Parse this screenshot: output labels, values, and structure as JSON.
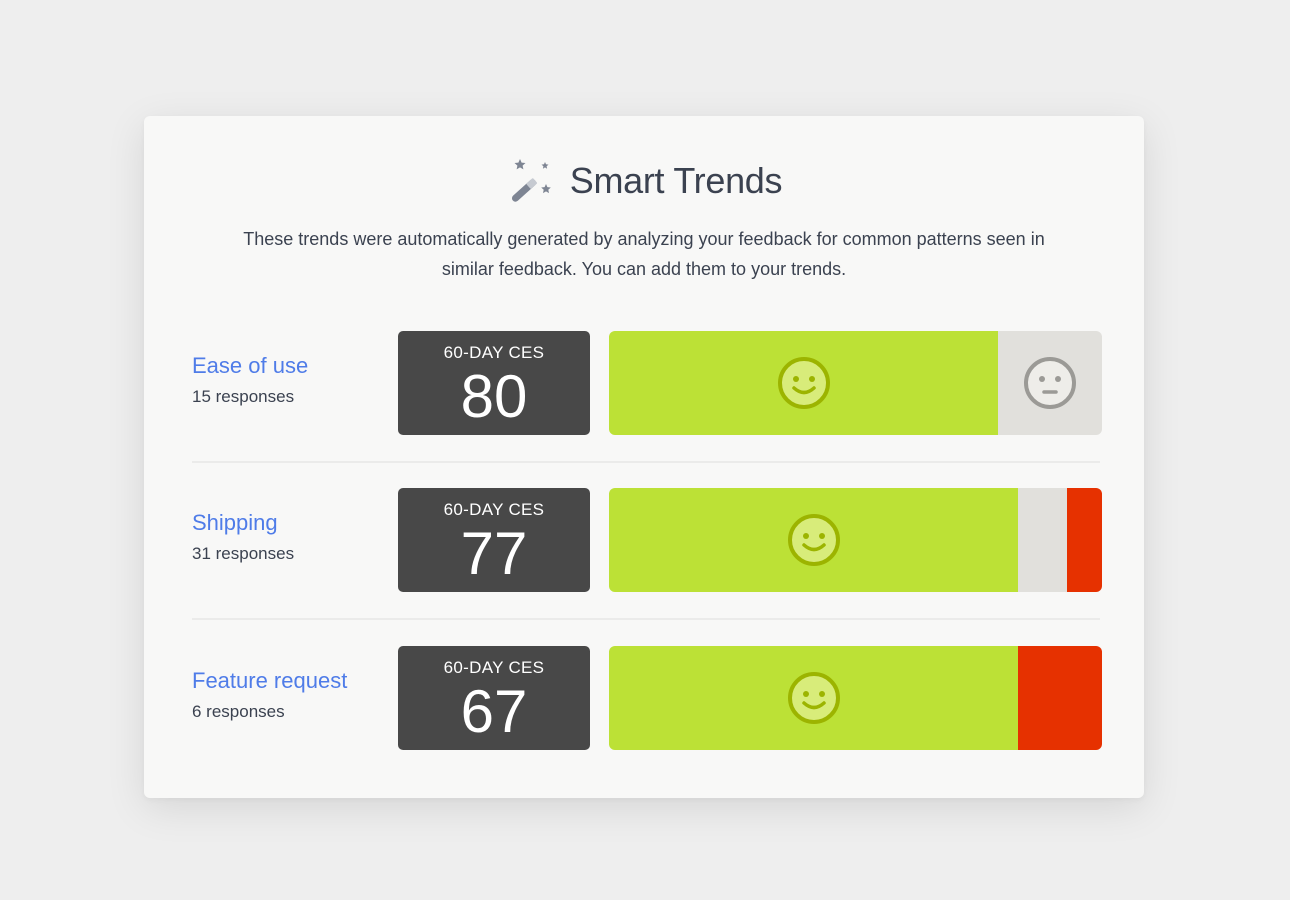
{
  "header": {
    "title": "Smart Trends",
    "description": "These trends were automatically generated by analyzing your feedback for common patterns seen in similar feedback. You can add them to your trends."
  },
  "colors": {
    "positive": "#bce136",
    "neutral": "#e1e0dc",
    "negative": "#e63100",
    "score_box": "#484848",
    "link": "#4f7ce8"
  },
  "trends": [
    {
      "name": "Ease of use",
      "responses": "15 responses",
      "metric_label": "60-DAY CES",
      "score": "80",
      "distribution": {
        "positive": 0.79,
        "neutral": 0.21,
        "negative": 0.0
      },
      "face_icons": [
        "smiley-face-icon",
        "neutral-face-icon"
      ]
    },
    {
      "name": "Shipping",
      "responses": "31 responses",
      "metric_label": "60-DAY CES",
      "score": "77",
      "distribution": {
        "positive": 0.83,
        "neutral": 0.1,
        "negative": 0.07
      },
      "face_icons": [
        "smiley-face-icon"
      ]
    },
    {
      "name": "Feature request",
      "responses": "6 responses",
      "metric_label": "60-DAY CES",
      "score": "67",
      "distribution": {
        "positive": 0.83,
        "neutral": 0.0,
        "negative": 0.17
      },
      "face_icons": [
        "smiley-face-icon"
      ]
    }
  ]
}
